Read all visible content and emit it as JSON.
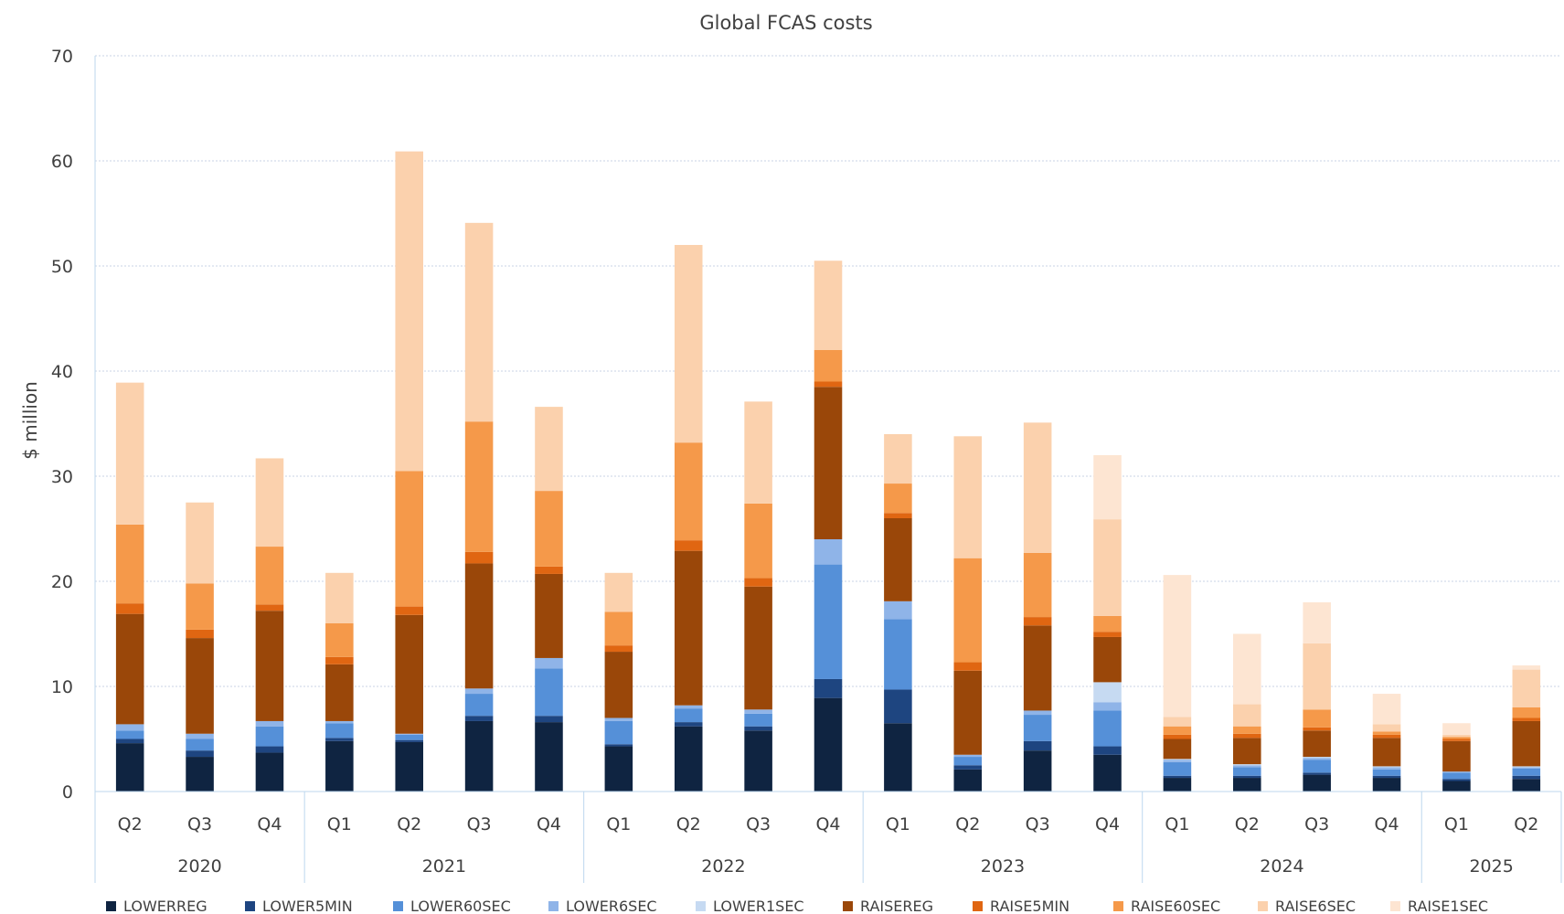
{
  "chart_data": {
    "type": "bar",
    "stacked": true,
    "title": "Global FCAS costs",
    "ylabel": "$ million",
    "xlabel": "",
    "ylim": [
      0,
      70
    ],
    "yticks": [
      "0",
      "10",
      "20",
      "30",
      "40",
      "50",
      "60",
      "70"
    ],
    "grid": true,
    "legend_position": "bottom",
    "groups": [
      {
        "label": "2020",
        "quarters": [
          "Q2",
          "Q3",
          "Q4"
        ]
      },
      {
        "label": "2021",
        "quarters": [
          "Q1",
          "Q2",
          "Q3",
          "Q4"
        ]
      },
      {
        "label": "2022",
        "quarters": [
          "Q1",
          "Q2",
          "Q3",
          "Q4"
        ]
      },
      {
        "label": "2023",
        "quarters": [
          "Q1",
          "Q2",
          "Q3",
          "Q4"
        ]
      },
      {
        "label": "2024",
        "quarters": [
          "Q1",
          "Q2",
          "Q3",
          "Q4"
        ]
      },
      {
        "label": "2025",
        "quarters": [
          "Q1",
          "Q2"
        ]
      }
    ],
    "series": [
      {
        "name": "LOWERREG",
        "color": "#0f2441",
        "values": [
          4.6,
          3.3,
          3.7,
          4.8,
          4.7,
          6.7,
          6.6,
          4.3,
          6.2,
          5.8,
          8.9,
          6.5,
          2.1,
          3.9,
          3.5,
          1.3,
          1.3,
          1.6,
          1.3,
          1.0,
          1.2
        ]
      },
      {
        "name": "LOWER5MIN",
        "color": "#1e4580",
        "values": [
          0.4,
          0.6,
          0.6,
          0.3,
          0.2,
          0.5,
          0.6,
          0.2,
          0.4,
          0.4,
          1.8,
          3.2,
          0.4,
          0.9,
          0.8,
          0.2,
          0.2,
          0.2,
          0.2,
          0.2,
          0.3
        ]
      },
      {
        "name": "LOWER60SEC",
        "color": "#5590d8",
        "values": [
          0.8,
          1.1,
          1.9,
          1.4,
          0.5,
          2.1,
          4.5,
          2.2,
          1.3,
          1.2,
          10.9,
          6.7,
          0.8,
          2.5,
          3.4,
          1.3,
          0.8,
          1.2,
          0.6,
          0.6,
          0.7
        ]
      },
      {
        "name": "LOWER6SEC",
        "color": "#8fb4e8",
        "values": [
          0.6,
          0.5,
          0.5,
          0.2,
          0.1,
          0.5,
          1.0,
          0.3,
          0.3,
          0.4,
          2.4,
          1.7,
          0.2,
          0.4,
          0.8,
          0.2,
          0.2,
          0.2,
          0.2,
          0.1,
          0.1
        ]
      },
      {
        "name": "LOWER1SEC",
        "color": "#c6daf2",
        "values": [
          0,
          0,
          0,
          0,
          0,
          0,
          0,
          0,
          0,
          0,
          0,
          0,
          0,
          0,
          1.9,
          0.1,
          0.1,
          0.1,
          0.1,
          0,
          0.1
        ]
      },
      {
        "name": "RAISEREG",
        "color": "#9a4709",
        "values": [
          10.5,
          9.1,
          10.5,
          5.4,
          11.3,
          11.9,
          8.0,
          6.3,
          14.7,
          11.7,
          14.5,
          7.9,
          8.0,
          8.1,
          4.3,
          1.9,
          2.5,
          2.5,
          2.7,
          2.9,
          4.3
        ]
      },
      {
        "name": "RAISE5MIN",
        "color": "#e06612",
        "values": [
          1.0,
          0.8,
          0.6,
          0.7,
          0.8,
          1.1,
          0.7,
          0.6,
          1.0,
          0.8,
          0.5,
          0.5,
          0.8,
          0.8,
          0.5,
          0.4,
          0.4,
          0.3,
          0.3,
          0.2,
          0.3
        ]
      },
      {
        "name": "RAISE60SEC",
        "color": "#f5994a",
        "values": [
          7.5,
          4.4,
          5.5,
          3.2,
          12.9,
          12.4,
          7.2,
          3.2,
          9.3,
          7.1,
          3.0,
          2.8,
          9.9,
          6.1,
          1.5,
          0.8,
          0.7,
          1.7,
          0.3,
          0.2,
          1.0
        ]
      },
      {
        "name": "RAISE6SEC",
        "color": "#fbd1ad",
        "values": [
          13.5,
          7.7,
          8.4,
          4.8,
          30.4,
          18.9,
          8.0,
          3.7,
          18.8,
          9.7,
          8.5,
          4.7,
          11.6,
          12.4,
          9.2,
          0.9,
          2.1,
          6.3,
          0.7,
          0.2,
          3.6
        ]
      },
      {
        "name": "RAISE1SEC",
        "color": "#fde5d2",
        "values": [
          0,
          0,
          0,
          0,
          0,
          0,
          0,
          0,
          0,
          0,
          0,
          0,
          0,
          0,
          6.1,
          13.5,
          6.7,
          3.9,
          2.9,
          1.1,
          0.4
        ]
      }
    ]
  }
}
